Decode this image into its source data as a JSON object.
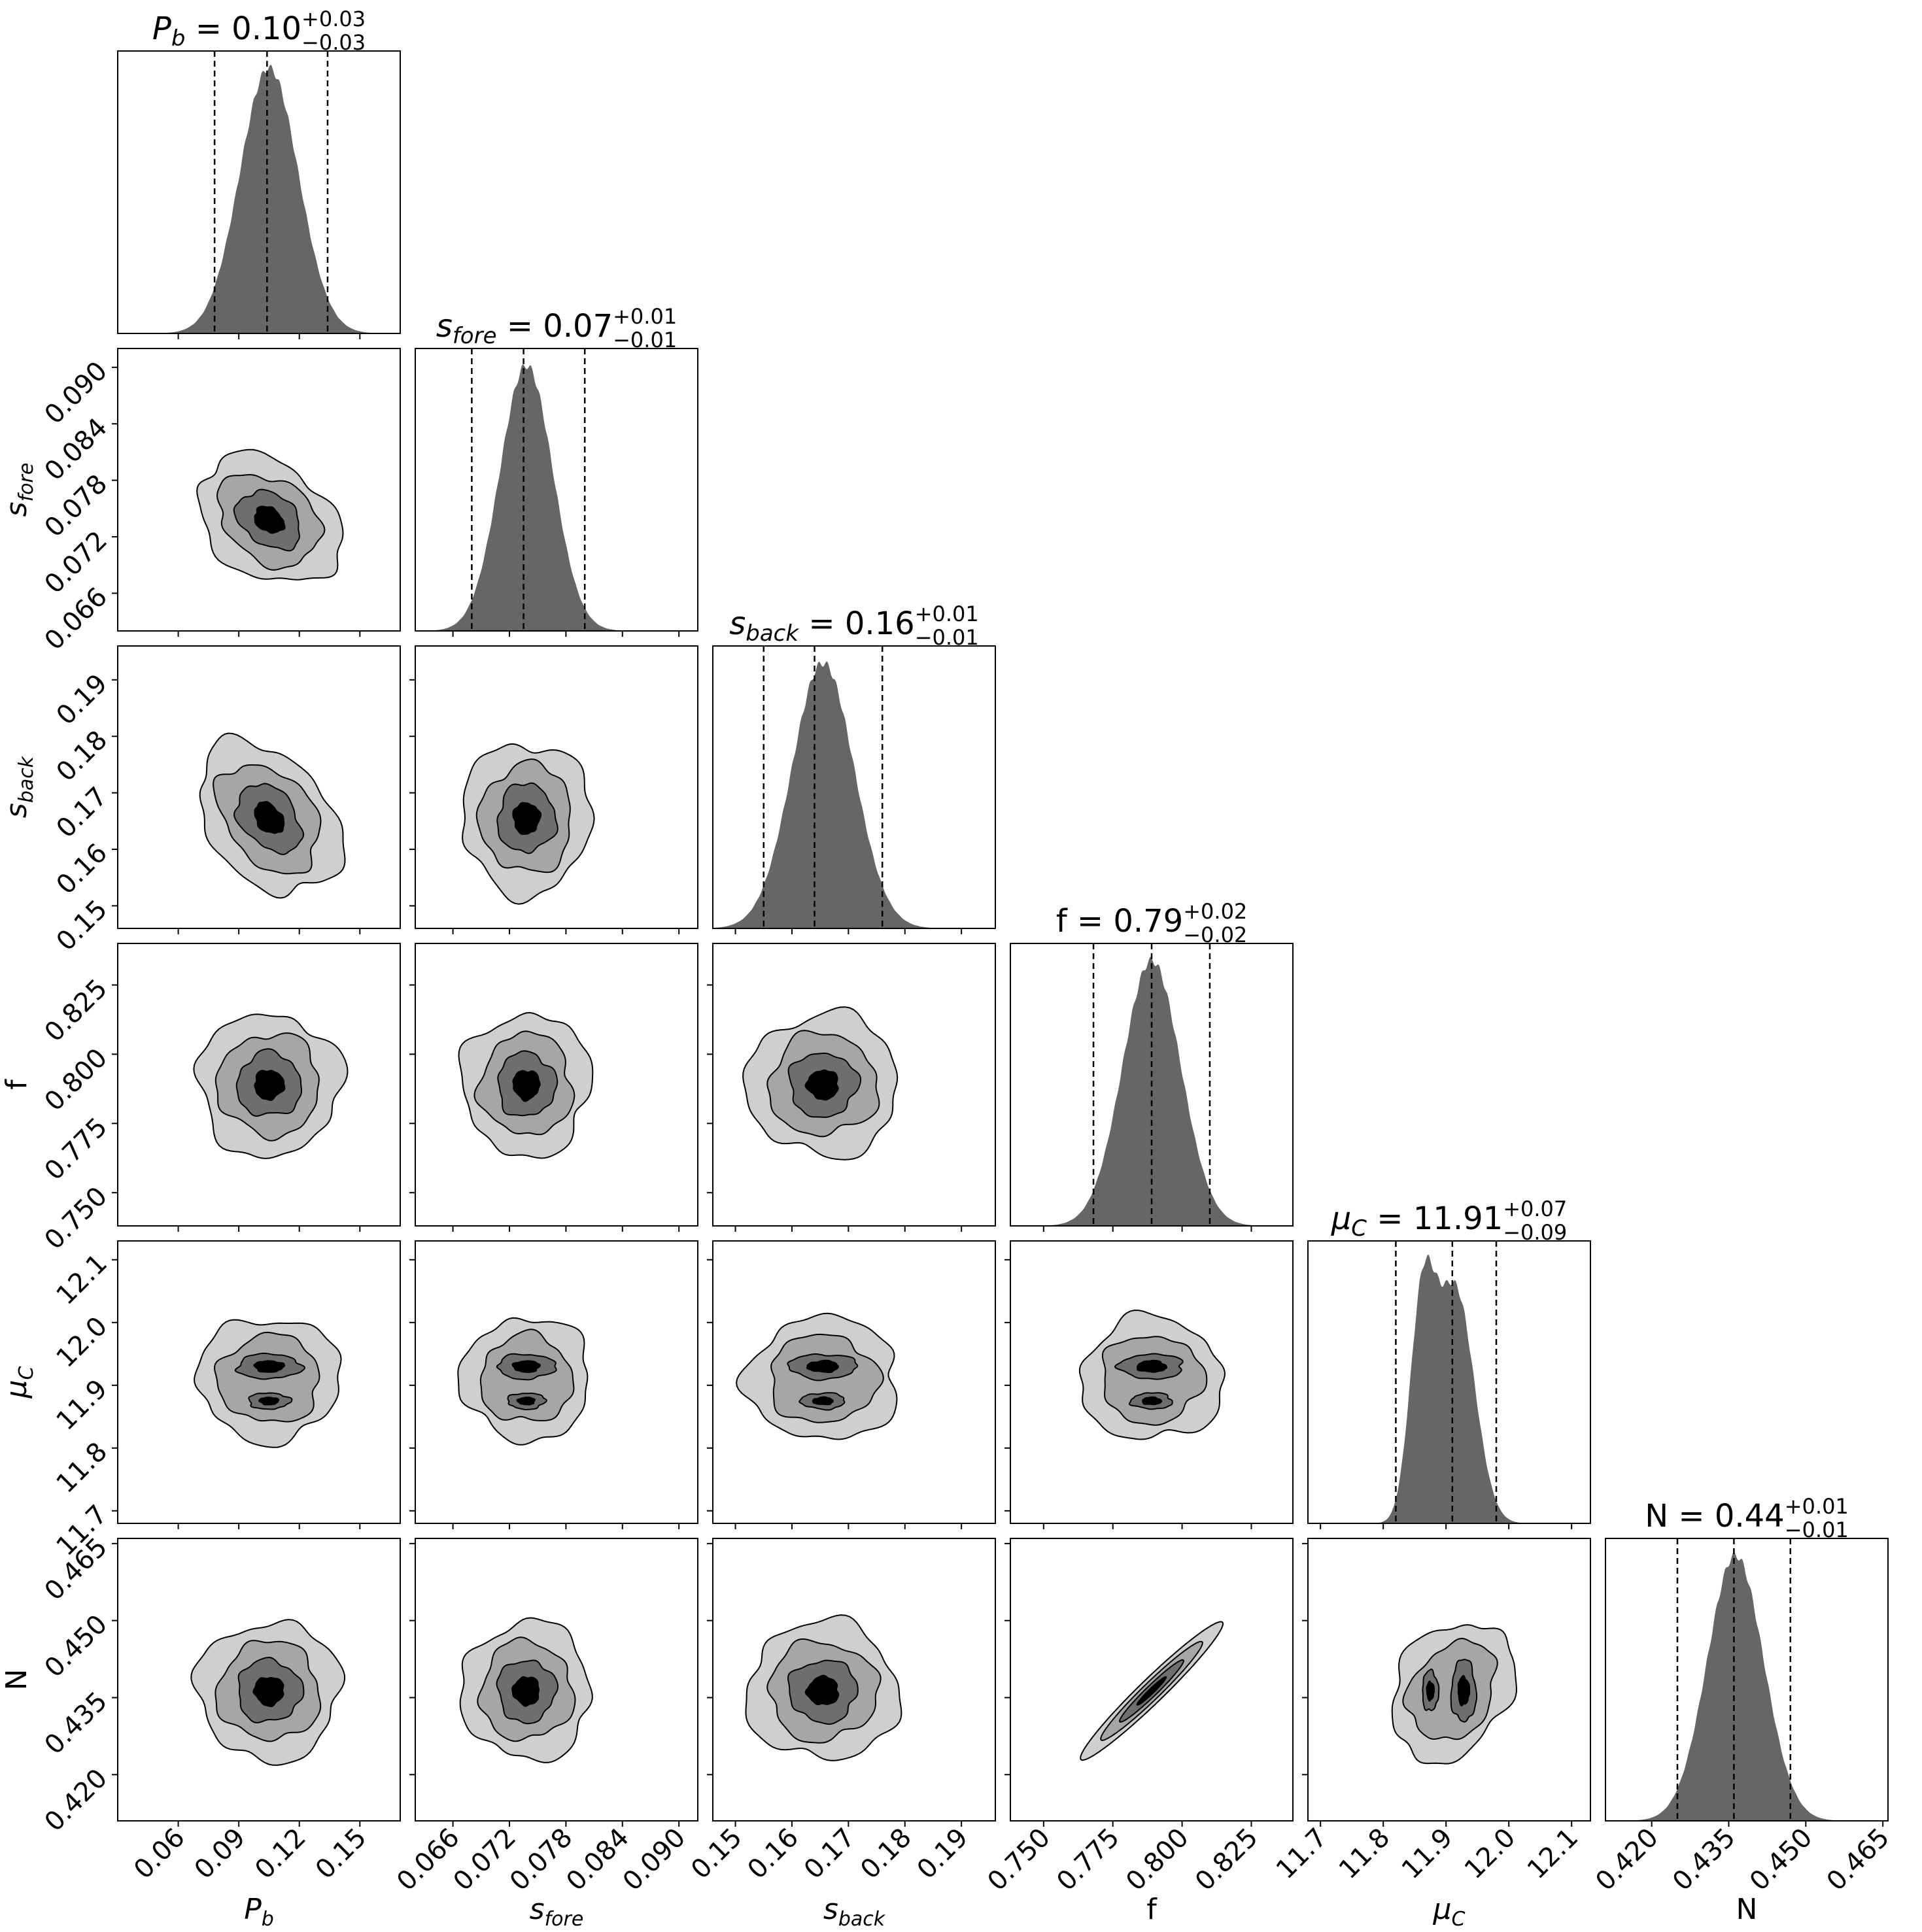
{
  "chart_data": {
    "type": "corner",
    "parameters": [
      {
        "label": "P_b",
        "display": [
          "P",
          "b"
        ],
        "median": 0.104,
        "lo": 0.078,
        "hi": 0.134,
        "range": [
          0.03,
          0.17
        ],
        "ticks": [
          "0.06",
          "0.09",
          "0.12",
          "0.15"
        ],
        "title": {
          "name": [
            "P",
            "b"
          ],
          "value": "0.10",
          "plus": "+0.03",
          "minus": "−0.03"
        },
        "hist": {
          "shape": "single",
          "mean": 0.105,
          "sd": 0.0145
        }
      },
      {
        "label": "s_fore",
        "display": [
          "s",
          "fore"
        ],
        "median": 0.0735,
        "lo": 0.068,
        "hi": 0.08,
        "range": [
          0.062,
          0.092
        ],
        "ticks": [
          "0.066",
          "0.072",
          "0.078",
          "0.084",
          "0.090"
        ],
        "title": {
          "name": [
            "s",
            "fore"
          ],
          "value": "0.07",
          "plus": "+0.01",
          "minus": "−0.01"
        },
        "hist": {
          "shape": "single",
          "mean": 0.0738,
          "sd": 0.0028
        }
      },
      {
        "label": "s_back",
        "display": [
          "s",
          "back"
        ],
        "median": 0.164,
        "lo": 0.155,
        "hi": 0.176,
        "range": [
          0.146,
          0.196
        ],
        "ticks": [
          "0.15",
          "0.16",
          "0.17",
          "0.18",
          "0.19"
        ],
        "title": {
          "name": [
            "s",
            "back"
          ],
          "value": "0.16",
          "plus": "+0.01",
          "minus": "−0.01"
        },
        "hist": {
          "shape": "single",
          "mean": 0.1655,
          "sd": 0.0055
        }
      },
      {
        "label": "f",
        "display": [
          "f",
          ""
        ],
        "median": 0.789,
        "lo": 0.768,
        "hi": 0.81,
        "range": [
          0.738,
          0.84
        ],
        "ticks": [
          "0.750",
          "0.775",
          "0.800",
          "0.825"
        ],
        "title": {
          "name": [
            "f",
            ""
          ],
          "value": "0.79",
          "plus": "+0.02",
          "minus": "−0.02"
        },
        "hist": {
          "shape": "single",
          "mean": 0.789,
          "sd": 0.0105
        }
      },
      {
        "label": "mu_C",
        "display": [
          "μ",
          "C"
        ],
        "median": 11.91,
        "lo": 11.82,
        "hi": 11.98,
        "range": [
          11.68,
          12.13
        ],
        "ticks": [
          "11.7",
          "11.8",
          "11.9",
          "12.0",
          "12.1"
        ],
        "title": {
          "name": [
            "μ",
            "C"
          ],
          "value": "11.91",
          "plus": "+0.07",
          "minus": "−0.09"
        },
        "hist": {
          "shape": "double",
          "means": [
            11.862,
            11.915
          ],
          "sds": [
            0.02,
            0.03
          ],
          "weights": [
            0.37,
            0.63
          ]
        }
      },
      {
        "label": "N",
        "display": [
          "N",
          ""
        ],
        "median": 0.436,
        "lo": 0.425,
        "hi": 0.447,
        "range": [
          0.411,
          0.466
        ],
        "ticks": [
          "0.420",
          "0.435",
          "0.450",
          "0.465"
        ],
        "title": {
          "name": [
            "N",
            ""
          ],
          "value": "0.44",
          "plus": "+0.01",
          "minus": "−0.01"
        },
        "hist": {
          "shape": "single",
          "mean": 0.4363,
          "sd": 0.0055
        }
      }
    ],
    "contour_levels": 4,
    "contour_fills": [
      "#cfcfcf",
      "#a6a6a6",
      "#6e6e6e",
      "#000000"
    ],
    "hist_color": "#666666",
    "correlations": {
      "0-1": -0.3,
      "0-2": -0.35,
      "1-2": 0.0,
      "0-3": 0.0,
      "1-3": 0.0,
      "2-3": 0.0,
      "0-4": 0.0,
      "1-4": 0.0,
      "2-4": 0.0,
      "3-4": 0.0,
      "0-5": 0.0,
      "1-5": 0.0,
      "2-5": 0.0,
      "3-5": 0.97,
      "4-5": 0.25
    }
  }
}
